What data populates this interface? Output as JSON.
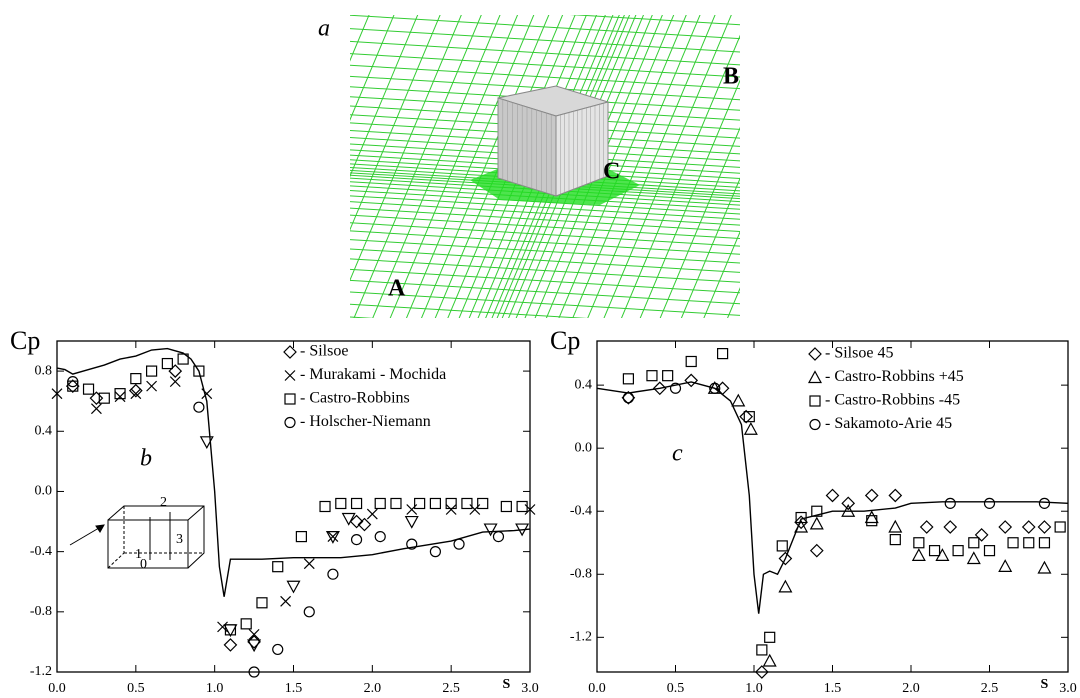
{
  "figure": {
    "panel_label": "a",
    "point_labels": [
      "A",
      "B",
      "C"
    ]
  },
  "chart_data": [
    {
      "type": "scatter",
      "panel_label": "b",
      "y_label": "Cp",
      "x_label": "S",
      "inset_labels": [
        "2",
        "3",
        "1",
        "0"
      ],
      "xlim": [
        0,
        3.0
      ],
      "ylim": [
        -1.2,
        1.0
      ],
      "xticks": [
        {
          "value": 0,
          "label": "0.0"
        },
        0.5,
        {
          "value": 1,
          "label": "1.0"
        },
        1.5,
        {
          "value": 2,
          "label": "2.0"
        },
        2.5,
        {
          "value": 3,
          "label": "3.0"
        }
      ],
      "yticks": [
        -1.2,
        -0.8,
        -0.4,
        {
          "value": 0,
          "label": "0.0"
        },
        0.4,
        0.8
      ],
      "series": [
        {
          "name": "- Silsoe",
          "marker": "diamond",
          "color": "#000000",
          "x": [
            0.1,
            0.25,
            0.5,
            0.75,
            1.1,
            1.25,
            1.9,
            1.95
          ],
          "values": [
            0.7,
            0.62,
            0.67,
            0.8,
            -1.02,
            -1.0,
            -0.2,
            -0.22
          ]
        },
        {
          "name": "- Murakami - Mochida",
          "marker": "x",
          "color": "#000000",
          "x": [
            0,
            0.25,
            0.4,
            0.5,
            0.6,
            0.75,
            0.95,
            1.05,
            1.25,
            1.45,
            1.6,
            1.75,
            2.0,
            2.25,
            2.5,
            2.65,
            3.0
          ],
          "values": [
            0.65,
            0.55,
            0.63,
            0.65,
            0.7,
            0.73,
            0.65,
            -0.9,
            -0.95,
            -0.73,
            -0.48,
            -0.3,
            -0.15,
            -0.12,
            -0.12,
            -0.12,
            -0.12
          ]
        },
        {
          "name": "- Castro-Robbins",
          "marker": "square",
          "color": "#000000",
          "x": [
            0.1,
            0.2,
            0.3,
            0.4,
            0.5,
            0.6,
            0.7,
            0.8,
            0.9,
            1.1,
            1.2,
            1.3,
            1.4,
            1.55,
            1.7,
            1.8,
            1.9,
            2.05,
            2.15,
            2.3,
            2.4,
            2.5,
            2.6,
            2.7,
            2.85,
            2.95
          ],
          "values": [
            0.7,
            0.68,
            0.62,
            0.65,
            0.75,
            0.8,
            0.85,
            0.88,
            0.8,
            -0.92,
            -0.88,
            -0.74,
            -0.5,
            -0.3,
            -0.1,
            -0.08,
            -0.08,
            -0.08,
            -0.08,
            -0.08,
            -0.08,
            -0.08,
            -0.08,
            -0.08,
            -0.1,
            -0.1
          ]
        },
        {
          "name": "- Holscher-Niemann",
          "marker": "circle",
          "color": "#000000",
          "x": [
            0.1,
            0.9,
            1.25,
            1.4,
            1.6,
            1.75,
            1.9,
            2.05,
            2.25,
            2.4,
            2.55,
            2.8
          ],
          "values": [
            0.73,
            0.56,
            -1.2,
            -1.05,
            -0.8,
            -0.55,
            -0.32,
            -0.3,
            -0.35,
            -0.4,
            -0.35,
            -0.3
          ]
        },
        {
          "marker": "triangle-down",
          "color": "#000000",
          "x": [
            0.95,
            1.1,
            1.25,
            1.5,
            1.75,
            1.85,
            2.25,
            2.75,
            2.95
          ],
          "values": [
            0.33,
            -0.92,
            -1.02,
            -0.63,
            -0.3,
            -0.18,
            -0.2,
            -0.25,
            -0.25
          ]
        },
        {
          "marker": "line",
          "color": "#000000",
          "x": [
            0,
            0.05,
            0.1,
            0.2,
            0.3,
            0.4,
            0.5,
            0.6,
            0.7,
            0.8,
            0.85,
            0.9,
            0.95,
            1.0,
            1.03,
            1.06,
            1.1,
            1.3,
            1.5,
            1.8,
            2.0,
            2.2,
            2.5,
            2.7,
            2.9,
            3.0
          ],
          "values": [
            0.82,
            0.81,
            0.78,
            0.81,
            0.84,
            0.88,
            0.9,
            0.94,
            0.95,
            0.92,
            0.88,
            0.8,
            0.6,
            0.0,
            -0.5,
            -0.7,
            -0.45,
            -0.45,
            -0.44,
            -0.44,
            -0.42,
            -0.38,
            -0.33,
            -0.27,
            -0.26,
            -0.25
          ]
        }
      ]
    },
    {
      "type": "scatter",
      "panel_label": "c",
      "y_label": "Cp",
      "x_label": "S",
      "xlim": [
        0,
        3.0
      ],
      "ylim": [
        -1.42,
        0.68
      ],
      "xticks": [
        {
          "value": 0,
          "label": "0.0"
        },
        0.5,
        {
          "value": 1,
          "label": "1.0"
        },
        1.5,
        {
          "value": 2,
          "label": "2.0"
        },
        2.5,
        {
          "value": 3,
          "label": "3.0"
        }
      ],
      "yticks": [
        -1.2,
        -0.8,
        -0.4,
        {
          "value": 0,
          "label": "0.0"
        },
        0.4
      ],
      "series": [
        {
          "name": "- Silsoe 45",
          "marker": "diamond",
          "color": "#000000",
          "x": [
            0.2,
            0.4,
            0.6,
            0.8,
            0.95,
            1.05,
            1.2,
            1.3,
            1.4,
            1.5,
            1.6,
            1.75,
            1.9,
            2.1,
            2.25,
            2.45,
            2.6,
            2.75,
            2.85
          ],
          "values": [
            0.32,
            0.38,
            0.43,
            0.38,
            0.2,
            -1.42,
            -0.7,
            -0.47,
            -0.65,
            -0.3,
            -0.35,
            -0.3,
            -0.3,
            -0.5,
            -0.5,
            -0.55,
            -0.5,
            -0.5,
            -0.5
          ]
        },
        {
          "name": "- Castro-Robbins +45",
          "marker": "triangle",
          "color": "#000000",
          "x": [
            0.75,
            0.9,
            0.98,
            1.1,
            1.2,
            1.3,
            1.4,
            1.6,
            1.75,
            1.9,
            2.05,
            2.2,
            2.4,
            2.6,
            2.85
          ],
          "values": [
            0.38,
            0.3,
            0.12,
            -1.35,
            -0.88,
            -0.5,
            -0.48,
            -0.4,
            -0.44,
            -0.5,
            -0.68,
            -0.68,
            -0.7,
            -0.75,
            -0.76
          ]
        },
        {
          "name": "- Castro-Robbins -45",
          "marker": "square",
          "color": "#000000",
          "x": [
            0.2,
            0.35,
            0.45,
            0.6,
            0.8,
            0.97,
            1.05,
            1.1,
            1.18,
            1.3,
            1.4,
            1.75,
            1.9,
            2.05,
            2.15,
            2.3,
            2.4,
            2.5,
            2.65,
            2.75,
            2.85,
            2.95
          ],
          "values": [
            0.44,
            0.46,
            0.46,
            0.55,
            0.6,
            0.2,
            -1.28,
            -1.2,
            -0.62,
            -0.44,
            -0.4,
            -0.46,
            -0.58,
            -0.6,
            -0.65,
            -0.65,
            -0.6,
            -0.65,
            -0.6,
            -0.6,
            -0.6,
            -0.5
          ]
        },
        {
          "name": "- Sakamoto-Arie 45",
          "marker": "circle",
          "color": "#000000",
          "x": [
            0.2,
            0.5,
            0.75,
            2.25,
            2.5,
            2.85
          ],
          "values": [
            0.32,
            0.38,
            0.38,
            -0.35,
            -0.35,
            -0.35
          ]
        },
        {
          "marker": "line",
          "color": "#000000",
          "x": [
            0,
            0.2,
            0.4,
            0.6,
            0.75,
            0.85,
            0.92,
            0.97,
            1.0,
            1.03,
            1.06,
            1.1,
            1.15,
            1.2,
            1.3,
            1.5,
            1.7,
            1.9,
            2.0,
            2.2,
            2.4,
            2.6,
            2.8,
            3.0
          ],
          "values": [
            0.38,
            0.35,
            0.38,
            0.42,
            0.38,
            0.3,
            0.15,
            -0.3,
            -0.8,
            -1.05,
            -0.8,
            -0.78,
            -0.8,
            -0.7,
            -0.45,
            -0.4,
            -0.4,
            -0.38,
            -0.35,
            -0.34,
            -0.34,
            -0.34,
            -0.34,
            -0.35
          ]
        }
      ]
    }
  ]
}
